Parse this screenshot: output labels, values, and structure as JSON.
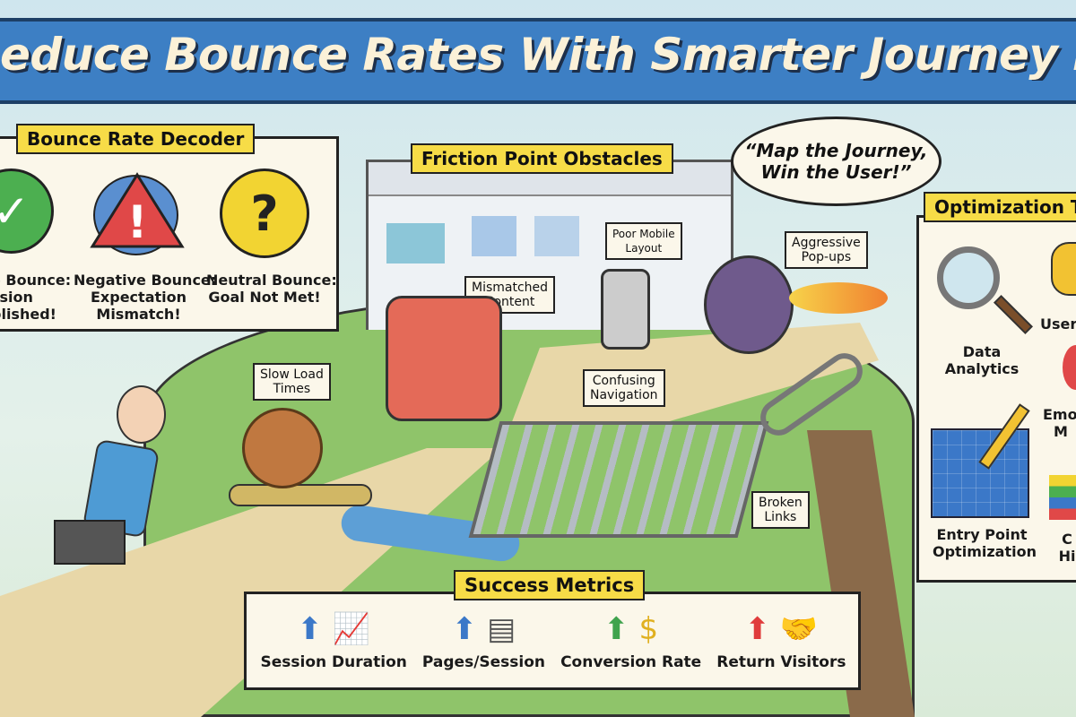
{
  "title": "educe Bounce Rates With Smarter Journey Mappi",
  "decoder": {
    "heading": "Bounce Rate Decoder",
    "items": [
      {
        "icon": "check-badge-icon",
        "lines": [
          "e Bounce:",
          "ssion",
          "plished!"
        ],
        "color": "#4caf50"
      },
      {
        "icon": "warning-triangle-icon",
        "lines": [
          "Negative Bounce:",
          "Expectation",
          "Mismatch!"
        ],
        "color": "#e04848"
      },
      {
        "icon": "question-badge-icon",
        "lines": [
          "Neutral Bounce:",
          "Goal Not Met!"
        ],
        "color": "#f2d432"
      }
    ]
  },
  "friction": {
    "heading": "Friction Point Obstacles",
    "notes": {
      "slow": [
        "Slow Load",
        "Times"
      ],
      "mismatch": [
        "Mismatched",
        "Content"
      ],
      "mobile": [
        "Poor Mobile",
        "Layout"
      ],
      "popups": [
        "Aggressive",
        "Pop-ups"
      ],
      "navigation": [
        "Confusing",
        "Navigation"
      ],
      "links": [
        "Broken",
        "Links"
      ]
    }
  },
  "speech": [
    "“Map the Journey,",
    "Win the User!”"
  ],
  "optimization": {
    "heading": "Optimization T",
    "items": [
      {
        "icon": "magnifier-icon",
        "lines": [
          "Data",
          "Analytics"
        ]
      },
      {
        "icon": "mask-icon",
        "lines": [
          "User"
        ]
      },
      {
        "icon": "heart-icon",
        "lines": [
          "Emot",
          "M"
        ]
      },
      {
        "icon": "blueprint-icon",
        "lines": [
          "Entry Point",
          "Optimization"
        ]
      },
      {
        "icon": "stack-icon",
        "lines": [
          "C",
          "Hi"
        ]
      }
    ]
  },
  "metrics": {
    "heading": "Success Metrics",
    "items": [
      {
        "label": "Session Duration",
        "arrow_color": "#3b78c8",
        "icon": "growth-chart-icon"
      },
      {
        "label": "Pages/Session",
        "arrow_color": "#3b78c8",
        "icon": "pages-icon"
      },
      {
        "label": "Conversion Rate",
        "arrow_color": "#3fa34d",
        "icon": "coin-icon"
      },
      {
        "label": "Return Visitors",
        "arrow_color": "#e03c3c",
        "icon": "handshake-icon"
      }
    ]
  },
  "colors": {
    "banner": "#3d7fc4",
    "tag": "#f7dc47",
    "panel": "#fbf7ea"
  }
}
